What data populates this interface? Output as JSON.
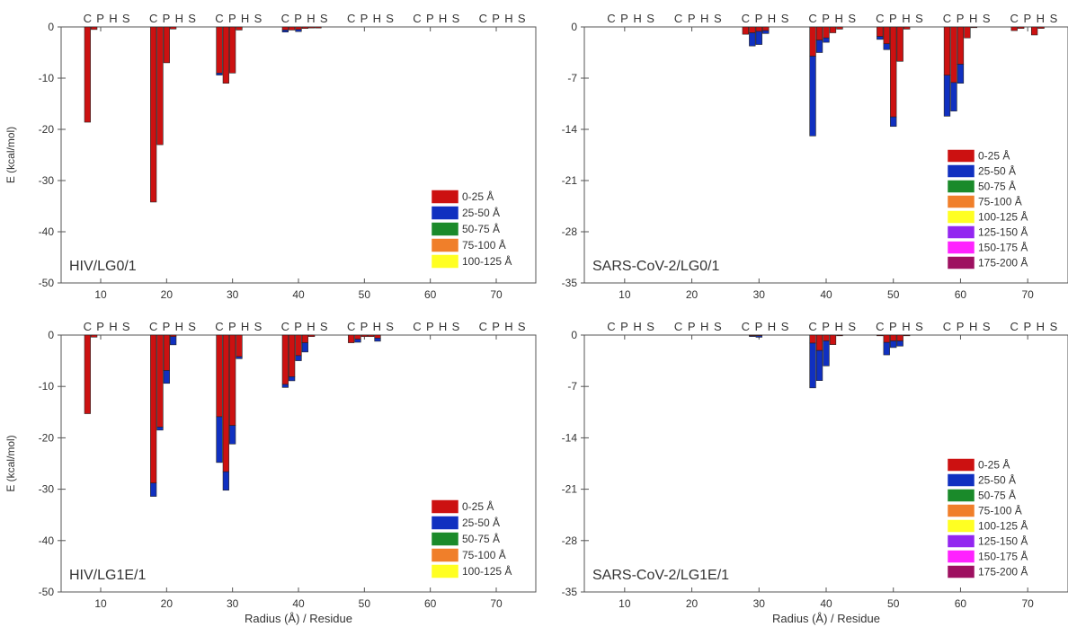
{
  "colors": {
    "axis": "#555555",
    "ranges": [
      "#cc1111",
      "#1030c0",
      "#1a8a2a",
      "#f07f2a",
      "#ffff22",
      "#9326f0",
      "#ff22ff",
      "#9e1060"
    ]
  },
  "chart_data": [
    {
      "type": "bar",
      "stacked": true,
      "title": "HIV/LG0/1",
      "xlabel": "",
      "ylabel": "E (kcal/mol)",
      "xlim": [
        4,
        76
      ],
      "ylim": [
        -50,
        0
      ],
      "xticks": [
        10,
        20,
        30,
        40,
        50,
        60,
        70
      ],
      "yticks": [
        0,
        -10,
        -20,
        -30,
        -40,
        -50
      ],
      "group_letters": [
        "C",
        "P",
        "H",
        "S"
      ],
      "group_starts": [
        7,
        17,
        27,
        37,
        47,
        57,
        67
      ],
      "legend_position": "bottom-right",
      "series": [
        {
          "name": "0-25 Å",
          "x": [
            8,
            9,
            18,
            19,
            20,
            21,
            28,
            29,
            30,
            31,
            38,
            39,
            40,
            41,
            42,
            43
          ],
          "values": [
            -18.6,
            -0.5,
            -34.2,
            -23.0,
            -7.0,
            -0.4,
            -9.0,
            -11.0,
            -9.0,
            -0.6,
            -0.6,
            -0.6,
            -0.5,
            -0.3,
            -0.2,
            -0.2
          ]
        },
        {
          "name": "25-50 Å",
          "x": [
            8,
            9,
            18,
            19,
            20,
            21,
            28,
            29,
            30,
            31,
            38,
            39,
            40,
            41,
            42,
            43
          ],
          "values": [
            0,
            0,
            0,
            0,
            0,
            0,
            -0.4,
            0,
            0,
            0,
            -0.4,
            0,
            -0.4,
            0,
            0,
            0
          ]
        },
        {
          "name": "50-75 Å",
          "x": [],
          "values": []
        },
        {
          "name": "75-100 Å",
          "x": [],
          "values": []
        },
        {
          "name": "100-125 Å",
          "x": [],
          "values": []
        }
      ]
    },
    {
      "type": "bar",
      "stacked": true,
      "title": "SARS-CoV-2/LG0/1",
      "xlabel": "",
      "ylabel": "",
      "xlim": [
        4,
        76
      ],
      "ylim": [
        -35,
        0
      ],
      "xticks": [
        10,
        20,
        30,
        40,
        50,
        60,
        70
      ],
      "yticks": [
        0,
        -7,
        -14,
        -21,
        -28,
        -35
      ],
      "group_letters": [
        "C",
        "P",
        "H",
        "S"
      ],
      "group_starts": [
        7,
        17,
        27,
        37,
        47,
        57,
        67
      ],
      "legend_position": "bottom-right",
      "series": [
        {
          "name": "0-25 Å",
          "x": [
            28,
            29,
            30,
            31,
            38,
            39,
            40,
            41,
            42,
            48,
            49,
            50,
            51,
            52,
            58,
            59,
            60,
            61,
            62,
            68,
            69,
            71,
            72
          ],
          "values": [
            -1.0,
            -0.8,
            -0.6,
            -0.5,
            -4.0,
            -1.8,
            -1.5,
            -0.8,
            -0.3,
            -1.3,
            -2.3,
            -12.3,
            -4.7,
            -0.3,
            -6.6,
            -7.6,
            -5.1,
            -1.5,
            -0.1,
            -0.5,
            -0.2,
            -1.1,
            -0.2
          ]
        },
        {
          "name": "25-50 Å",
          "x": [
            28,
            29,
            30,
            31,
            38,
            39,
            40,
            41,
            42,
            48,
            49,
            50,
            51,
            52,
            58,
            59,
            60,
            61,
            62,
            68,
            69,
            71,
            72
          ],
          "values": [
            0,
            -1.8,
            -1.8,
            -0.4,
            -10.9,
            -1.7,
            -0.6,
            0,
            0,
            -0.4,
            -0.8,
            -1.3,
            0,
            0,
            -5.6,
            -3.9,
            -2.6,
            0,
            0,
            0,
            0,
            0,
            0
          ]
        },
        {
          "name": "50-75 Å",
          "x": [],
          "values": []
        },
        {
          "name": "75-100 Å",
          "x": [],
          "values": []
        },
        {
          "name": "100-125 Å",
          "x": [],
          "values": []
        },
        {
          "name": "125-150 Å",
          "x": [],
          "values": []
        },
        {
          "name": "150-175 Å",
          "x": [],
          "values": []
        },
        {
          "name": "175-200 Å",
          "x": [],
          "values": []
        }
      ]
    },
    {
      "type": "bar",
      "stacked": true,
      "title": "HIV/LG1E/1",
      "xlabel": "Radius (Å) / Residue",
      "ylabel": "E (kcal/mol)",
      "xlim": [
        4,
        76
      ],
      "ylim": [
        -50,
        0
      ],
      "xticks": [
        10,
        20,
        30,
        40,
        50,
        60,
        70
      ],
      "yticks": [
        0,
        -10,
        -20,
        -30,
        -40,
        -50
      ],
      "group_letters": [
        "C",
        "P",
        "H",
        "S"
      ],
      "group_starts": [
        7,
        17,
        27,
        37,
        47,
        57,
        67
      ],
      "legend_position": "bottom-right",
      "series": [
        {
          "name": "0-25 Å",
          "x": [
            8,
            9,
            18,
            19,
            20,
            21,
            28,
            29,
            30,
            31,
            38,
            39,
            40,
            41,
            42,
            48,
            49,
            50,
            51,
            52
          ],
          "values": [
            -15.3,
            -0.4,
            -28.8,
            -17.9,
            -6.9,
            -0.3,
            -15.9,
            -26.6,
            -17.6,
            -4.2,
            -9.6,
            -8.1,
            -4.0,
            -1.5,
            -0.3,
            -1.5,
            -0.8,
            -0.3,
            -0.3,
            -0.6
          ]
        },
        {
          "name": "25-50 Å",
          "x": [
            8,
            9,
            18,
            19,
            20,
            21,
            28,
            29,
            30,
            31,
            38,
            39,
            40,
            41,
            42,
            48,
            49,
            50,
            51,
            52
          ],
          "values": [
            0,
            0,
            -2.6,
            -0.6,
            -2.5,
            -1.6,
            -8.9,
            -3.6,
            -3.6,
            -0.4,
            -0.6,
            -0.8,
            -1.0,
            -1.8,
            0,
            0,
            -0.6,
            0,
            0,
            -0.6
          ]
        },
        {
          "name": "50-75 Å",
          "x": [],
          "values": []
        },
        {
          "name": "75-100 Å",
          "x": [],
          "values": []
        },
        {
          "name": "100-125 Å",
          "x": [],
          "values": []
        }
      ]
    },
    {
      "type": "bar",
      "stacked": true,
      "title": "SARS-CoV-2/LG1E/1",
      "xlabel": "Radius (Å) / Residue",
      "ylabel": "",
      "xlim": [
        4,
        76
      ],
      "ylim": [
        -35,
        0
      ],
      "xticks": [
        10,
        20,
        30,
        40,
        50,
        60,
        70
      ],
      "yticks": [
        0,
        -7,
        -14,
        -21,
        -28,
        -35
      ],
      "group_letters": [
        "C",
        "P",
        "H",
        "S"
      ],
      "group_starts": [
        7,
        17,
        27,
        37,
        47,
        57,
        67
      ],
      "legend_position": "bottom-right",
      "series": [
        {
          "name": "0-25 Å",
          "x": [
            29,
            30,
            38,
            39,
            40,
            41,
            42,
            48,
            49,
            50,
            51,
            52
          ],
          "values": [
            -0.1,
            -0.1,
            -1.1,
            -2.1,
            -0.8,
            -1.3,
            -0.1,
            -0.1,
            -1.0,
            -0.8,
            -0.8,
            -0.1
          ]
        },
        {
          "name": "25-50 Å",
          "x": [
            29,
            30,
            38,
            39,
            40,
            41,
            42,
            48,
            49,
            50,
            51,
            52
          ],
          "values": [
            -0.1,
            -0.2,
            -6.1,
            -4.1,
            -3.4,
            0,
            0,
            0,
            -1.7,
            -0.9,
            -0.7,
            0
          ]
        },
        {
          "name": "50-75 Å",
          "x": [],
          "values": []
        },
        {
          "name": "75-100 Å",
          "x": [],
          "values": []
        },
        {
          "name": "100-125 Å",
          "x": [],
          "values": []
        },
        {
          "name": "125-150 Å",
          "x": [],
          "values": []
        },
        {
          "name": "150-175 Å",
          "x": [],
          "values": []
        },
        {
          "name": "175-200 Å",
          "x": [],
          "values": []
        }
      ]
    }
  ]
}
